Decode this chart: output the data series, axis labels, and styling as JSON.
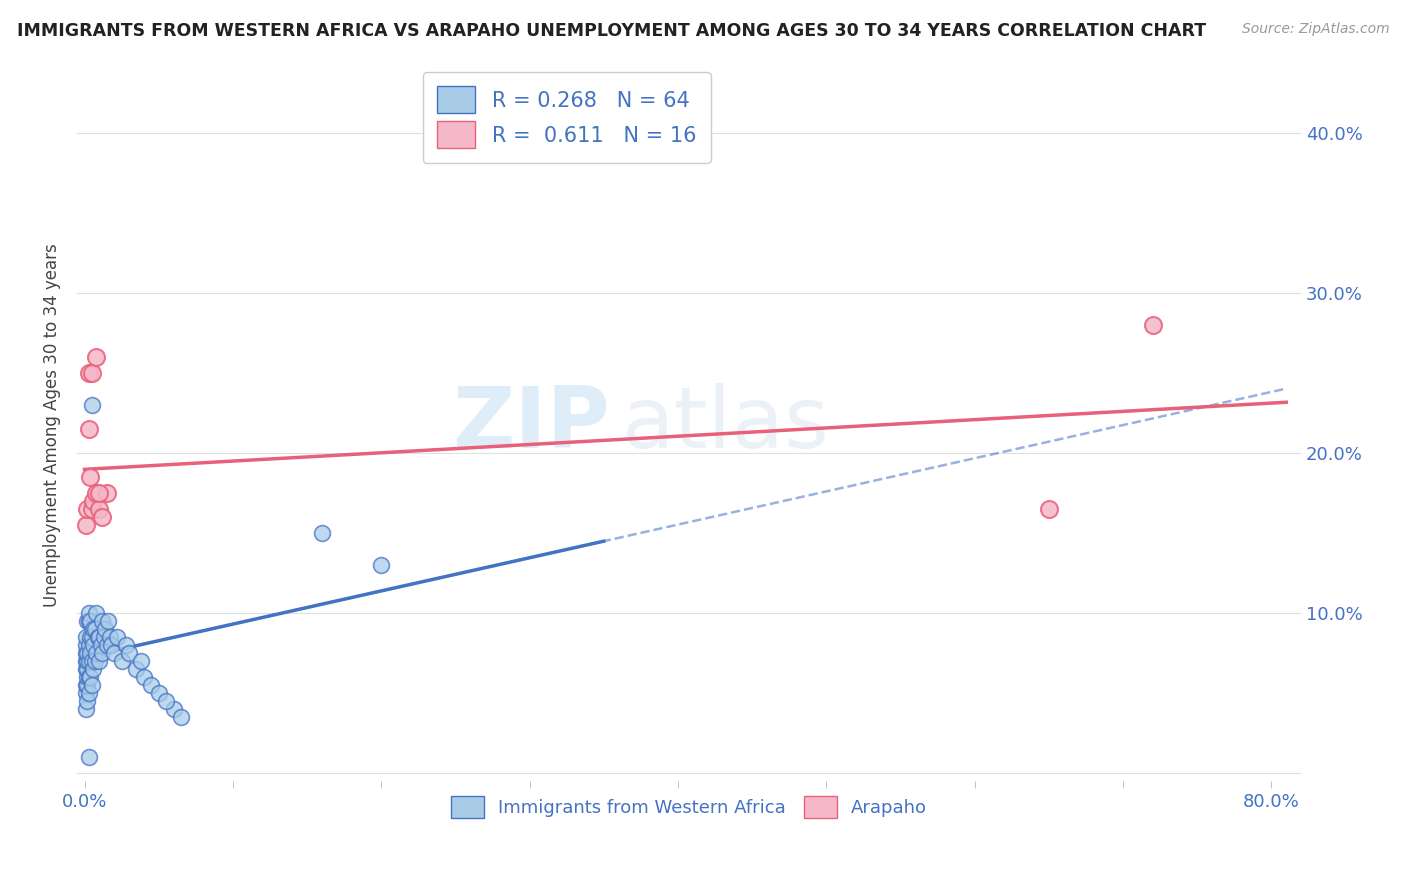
{
  "title": "IMMIGRANTS FROM WESTERN AFRICA VS ARAPAHO UNEMPLOYMENT AMONG AGES 30 TO 34 YEARS CORRELATION CHART",
  "source": "Source: ZipAtlas.com",
  "ylabel": "Unemployment Among Ages 30 to 34 years",
  "legend_bottom": [
    "Immigrants from Western Africa",
    "Arapaho"
  ],
  "blue_R": 0.268,
  "blue_N": 64,
  "pink_R": 0.611,
  "pink_N": 16,
  "blue_color": "#a8cce8",
  "pink_color": "#f5b8c8",
  "blue_line_color": "#4472c4",
  "pink_line_color": "#e8607a",
  "watermark_zip": "ZIP",
  "watermark_atlas": "atlas",
  "xlim": [
    0.0,
    0.82
  ],
  "ylim": [
    0.0,
    0.44
  ],
  "xtick_vals": [
    0.0,
    0.1,
    0.2,
    0.3,
    0.4,
    0.5,
    0.6,
    0.7,
    0.8
  ],
  "ytick_vals": [
    0.0,
    0.1,
    0.2,
    0.3,
    0.4
  ],
  "blue_scatter_x": [
    0.001,
    0.001,
    0.001,
    0.001,
    0.001,
    0.001,
    0.001,
    0.001,
    0.002,
    0.002,
    0.002,
    0.002,
    0.002,
    0.002,
    0.002,
    0.003,
    0.003,
    0.003,
    0.003,
    0.003,
    0.003,
    0.004,
    0.004,
    0.004,
    0.004,
    0.005,
    0.005,
    0.005,
    0.006,
    0.006,
    0.006,
    0.007,
    0.007,
    0.008,
    0.008,
    0.009,
    0.01,
    0.01,
    0.011,
    0.012,
    0.012,
    0.013,
    0.014,
    0.015,
    0.016,
    0.017,
    0.018,
    0.02,
    0.022,
    0.025,
    0.028,
    0.03,
    0.035,
    0.038,
    0.04,
    0.045,
    0.05,
    0.06,
    0.055,
    0.065,
    0.005,
    0.003,
    0.16,
    0.2
  ],
  "blue_scatter_y": [
    0.04,
    0.05,
    0.055,
    0.065,
    0.07,
    0.075,
    0.08,
    0.085,
    0.045,
    0.055,
    0.06,
    0.065,
    0.07,
    0.075,
    0.095,
    0.05,
    0.06,
    0.07,
    0.08,
    0.095,
    0.1,
    0.06,
    0.075,
    0.085,
    0.095,
    0.055,
    0.07,
    0.085,
    0.065,
    0.08,
    0.09,
    0.07,
    0.09,
    0.075,
    0.1,
    0.085,
    0.07,
    0.085,
    0.08,
    0.075,
    0.095,
    0.085,
    0.09,
    0.08,
    0.095,
    0.085,
    0.08,
    0.075,
    0.085,
    0.07,
    0.08,
    0.075,
    0.065,
    0.07,
    0.06,
    0.055,
    0.05,
    0.04,
    0.045,
    0.035,
    0.23,
    0.01,
    0.15,
    0.13
  ],
  "pink_scatter_x": [
    0.001,
    0.002,
    0.003,
    0.004,
    0.005,
    0.006,
    0.008,
    0.01,
    0.012,
    0.015,
    0.003,
    0.005,
    0.008,
    0.01,
    0.65,
    0.72
  ],
  "pink_scatter_y": [
    0.155,
    0.165,
    0.215,
    0.185,
    0.165,
    0.17,
    0.175,
    0.165,
    0.16,
    0.175,
    0.25,
    0.25,
    0.26,
    0.175,
    0.165,
    0.28
  ],
  "background_color": "#ffffff",
  "grid_color": "#e0e0e0",
  "title_color": "#222222",
  "tick_label_color": "#4472c4",
  "ylabel_color": "#444444"
}
